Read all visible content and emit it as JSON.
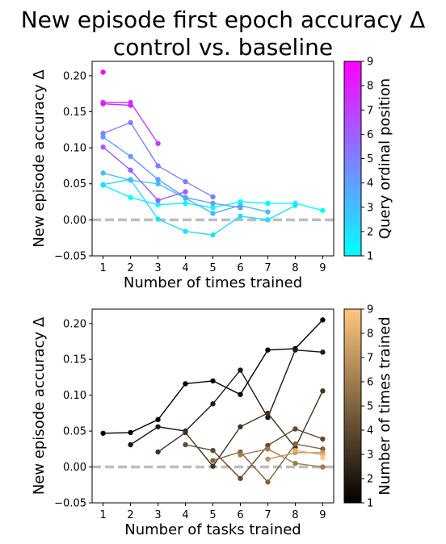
{
  "figure": {
    "title_line1": "New episode first epoch accuracy Δ",
    "title_line2": "control vs. baseline"
  },
  "chart_data": [
    {
      "type": "line",
      "xlabel": "Number of times trained",
      "ylabel": "New episode accuracy Δ",
      "xlim": [
        0.6,
        9.4
      ],
      "ylim": [
        -0.05,
        0.22
      ],
      "xticks": [
        1,
        2,
        3,
        4,
        5,
        6,
        7,
        8,
        9
      ],
      "yticks": [
        -0.05,
        0.0,
        0.05,
        0.1,
        0.15,
        0.2
      ],
      "ytick_labels": [
        "−0.05",
        "0.00",
        "0.05",
        "0.10",
        "0.15",
        "0.20"
      ],
      "grid": false,
      "reference_line": {
        "y": 0.0,
        "style": "dashed",
        "color": "#bdbdbd"
      },
      "colorbar": {
        "label": "Query ordinal position",
        "range": [
          1,
          9
        ],
        "ticks": [
          1,
          2,
          3,
          4,
          5,
          6,
          7,
          8,
          9
        ],
        "colormap": "cool",
        "color_min": "#00ffff",
        "color_max": "#ff00ff"
      },
      "series": [
        {
          "c": 1,
          "x": [
            1,
            2,
            3,
            4,
            5,
            6,
            7,
            8,
            9
          ],
          "y": [
            0.048,
            0.031,
            0.021,
            0.023,
            0.017,
            0.025,
            0.023,
            0.023,
            0.013
          ]
        },
        {
          "c": 2,
          "x": [
            1,
            2,
            3,
            4,
            5,
            6,
            7,
            8
          ],
          "y": [
            0.049,
            0.056,
            0.001,
            -0.016,
            -0.021,
            0.005,
            0.0,
            0.02
          ]
        },
        {
          "c": 3,
          "x": [
            1,
            2,
            3,
            4,
            5,
            6,
            7
          ],
          "y": [
            0.065,
            0.055,
            0.05,
            0.03,
            0.009,
            0.02,
            0.011
          ]
        },
        {
          "c": 4,
          "x": [
            1,
            2,
            3,
            4,
            5,
            6
          ],
          "y": [
            0.115,
            0.088,
            0.056,
            0.031,
            0.023,
            0.017
          ]
        },
        {
          "c": 5,
          "x": [
            1,
            2,
            3,
            4,
            5
          ],
          "y": [
            0.12,
            0.135,
            0.075,
            0.053,
            0.032
          ]
        },
        {
          "c": 6,
          "x": [
            1,
            2,
            3,
            4
          ],
          "y": [
            0.101,
            0.069,
            0.027,
            0.039
          ]
        },
        {
          "c": 7,
          "x": [
            1,
            2,
            3
          ],
          "y": [
            0.163,
            0.163,
            0.106
          ]
        },
        {
          "c": 8,
          "x": [
            1,
            2
          ],
          "y": [
            0.161,
            0.159
          ]
        },
        {
          "c": 9,
          "x": [
            1
          ],
          "y": [
            0.205
          ]
        }
      ]
    },
    {
      "type": "line",
      "xlabel": "Number of tasks trained",
      "ylabel": "New episode accuracy Δ",
      "xlim": [
        0.6,
        9.4
      ],
      "ylim": [
        -0.05,
        0.22
      ],
      "xticks": [
        1,
        2,
        3,
        4,
        5,
        6,
        7,
        8,
        9
      ],
      "yticks": [
        -0.05,
        0.0,
        0.05,
        0.1,
        0.15,
        0.2
      ],
      "ytick_labels": [
        "−0.05",
        "0.00",
        "0.05",
        "0.10",
        "0.15",
        "0.20"
      ],
      "grid": false,
      "reference_line": {
        "y": 0.0,
        "style": "dashed",
        "color": "#bdbdbd"
      },
      "colorbar": {
        "label": "Number of times trained",
        "range": [
          1,
          9
        ],
        "ticks": [
          1,
          2,
          3,
          4,
          5,
          6,
          7,
          8,
          9
        ],
        "colormap": "copper",
        "color_min": "#000000",
        "color_max": "#ffc77f"
      },
      "series": [
        {
          "c": 1,
          "x": [
            1,
            2,
            3,
            4,
            5,
            6,
            7,
            8,
            9
          ],
          "y": [
            0.047,
            0.048,
            0.066,
            0.116,
            0.12,
            0.101,
            0.163,
            0.165,
            0.205
          ]
        },
        {
          "c": 2,
          "x": [
            2,
            3,
            4,
            5,
            6,
            7,
            8,
            9
          ],
          "y": [
            0.031,
            0.056,
            0.05,
            0.088,
            0.135,
            0.069,
            0.163,
            0.16
          ]
        },
        {
          "c": 3,
          "x": [
            3,
            4,
            5,
            6,
            7,
            8,
            9
          ],
          "y": [
            0.021,
            0.048,
            0.001,
            0.056,
            0.075,
            0.027,
            0.106
          ]
        },
        {
          "c": 4,
          "x": [
            4,
            5,
            6,
            7,
            8,
            9
          ],
          "y": [
            0.031,
            0.023,
            -0.016,
            0.03,
            0.053,
            0.039
          ]
        },
        {
          "c": 5,
          "x": [
            5,
            6,
            7,
            8,
            9
          ],
          "y": [
            0.009,
            0.021,
            -0.021,
            0.032,
            0.025
          ]
        },
        {
          "c": 6,
          "x": [
            6,
            7,
            8,
            9
          ],
          "y": [
            0.017,
            0.025,
            0.005,
            0.0
          ]
        },
        {
          "c": 7,
          "x": [
            7,
            8,
            9
          ],
          "y": [
            0.011,
            0.02,
            0.02
          ]
        },
        {
          "c": 8,
          "x": [
            8,
            9
          ],
          "y": [
            0.023,
            0.017
          ]
        },
        {
          "c": 9,
          "x": [
            9
          ],
          "y": [
            0.013
          ]
        }
      ]
    }
  ]
}
